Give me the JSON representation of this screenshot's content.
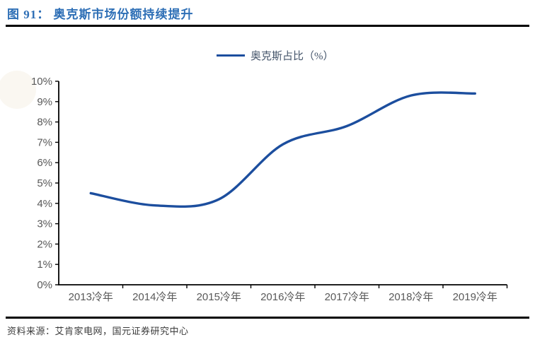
{
  "figure": {
    "title": "图 91： 奥克斯市场份额持续提升",
    "source_note": "资料来源：艾肯家电网，国元证券研究中心"
  },
  "legend": {
    "label": "奥克斯占比（%）"
  },
  "chart_data": {
    "type": "line",
    "title": "",
    "xlabel": "",
    "ylabel": "",
    "categories": [
      "2013冷年",
      "2014冷年",
      "2015冷年",
      "2016冷年",
      "2017冷年",
      "2018冷年",
      "2019冷年"
    ],
    "series": [
      {
        "name": "奥克斯占比（%）",
        "values": [
          4.5,
          3.9,
          4.2,
          6.9,
          7.8,
          9.3,
          9.4
        ]
      }
    ],
    "ylim": [
      0,
      10
    ],
    "ytick_step": 1,
    "ytick_labels": [
      "0%",
      "1%",
      "2%",
      "3%",
      "4%",
      "5%",
      "6%",
      "7%",
      "8%",
      "9%",
      "10%"
    ],
    "grid": false,
    "legend_position": "top-center",
    "smooth": true
  },
  "colors": {
    "line": "#1C4E9E",
    "title": "#2E6FB6",
    "axis": "#000000",
    "tick_label": "#595959",
    "legend_text": "#44546A",
    "rule": "#000000"
  }
}
